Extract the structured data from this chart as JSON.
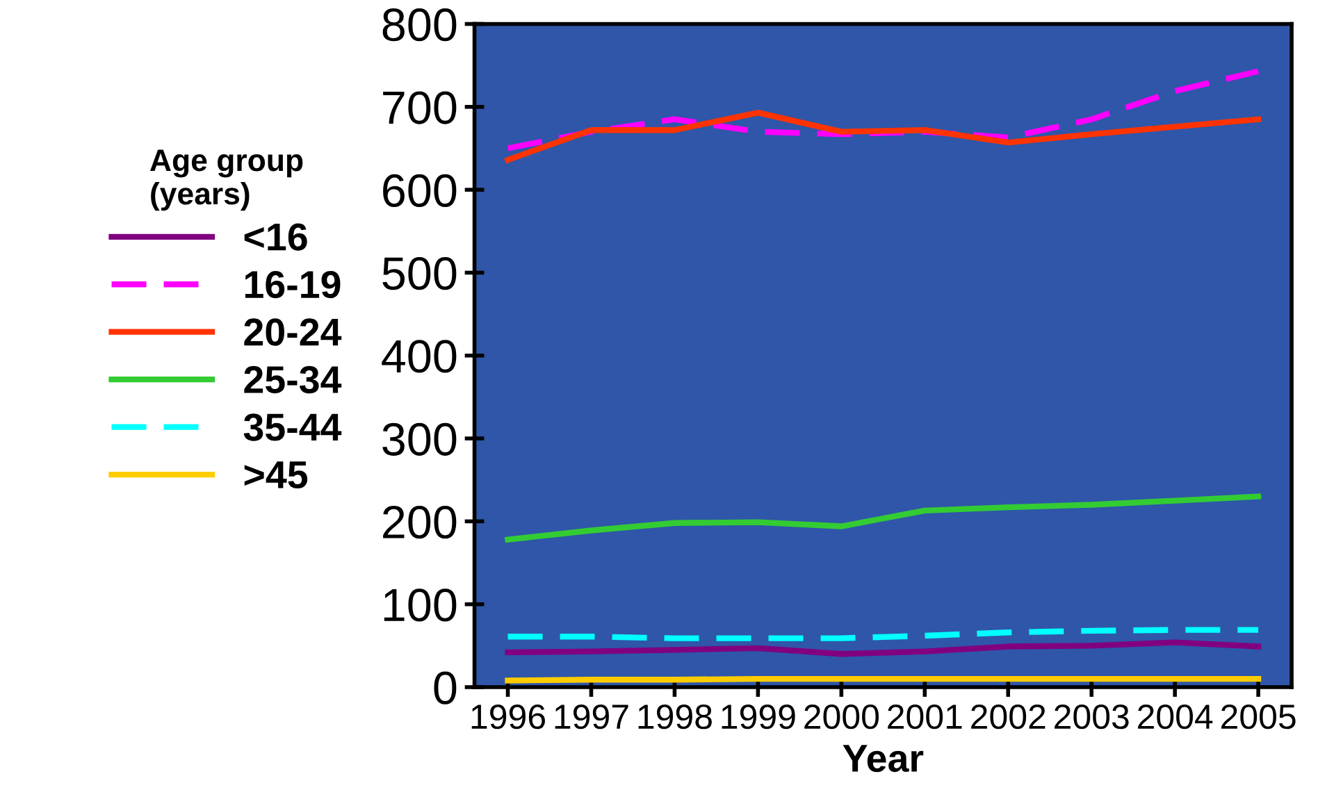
{
  "chart_data": {
    "type": "line",
    "xlabel": "Year",
    "legend_title": "Age group\n(years)",
    "legend": "left",
    "categories": [
      "1996",
      "1997",
      "1998",
      "1999",
      "2000",
      "2001",
      "2002",
      "2003",
      "2004",
      "2005"
    ],
    "ylim": [
      0,
      800
    ],
    "yticks": [
      0,
      100,
      200,
      300,
      400,
      500,
      600,
      700,
      800
    ],
    "grid": false,
    "series": [
      {
        "name": "<16",
        "color": "#800080",
        "line_style": "solid",
        "values": [
          42,
          43,
          45,
          47,
          40,
          43,
          49,
          50,
          54,
          49
        ]
      },
      {
        "name": "16-19",
        "color": "#ff00ff",
        "line_style": "dashed",
        "values": [
          650,
          670,
          685,
          670,
          667,
          670,
          663,
          685,
          719,
          743
        ]
      },
      {
        "name": "20-24",
        "color": "#ff3300",
        "line_style": "solid",
        "values": [
          636,
          672,
          672,
          693,
          670,
          672,
          657,
          667,
          676,
          685
        ]
      },
      {
        "name": "25-34",
        "color": "#33cc33",
        "line_style": "solid",
        "values": [
          178,
          189,
          198,
          199,
          194,
          213,
          217,
          220,
          225,
          230
        ]
      },
      {
        "name": "35-44",
        "color": "#00ffff",
        "line_style": "dashed",
        "values": [
          61,
          61,
          59,
          59,
          59,
          62,
          66,
          68,
          69,
          69
        ]
      },
      {
        "name": ">45",
        "color": "#ffcc00",
        "line_style": "solid",
        "values": [
          8,
          9,
          9,
          10,
          10,
          10,
          10,
          10,
          10,
          10
        ]
      }
    ]
  }
}
